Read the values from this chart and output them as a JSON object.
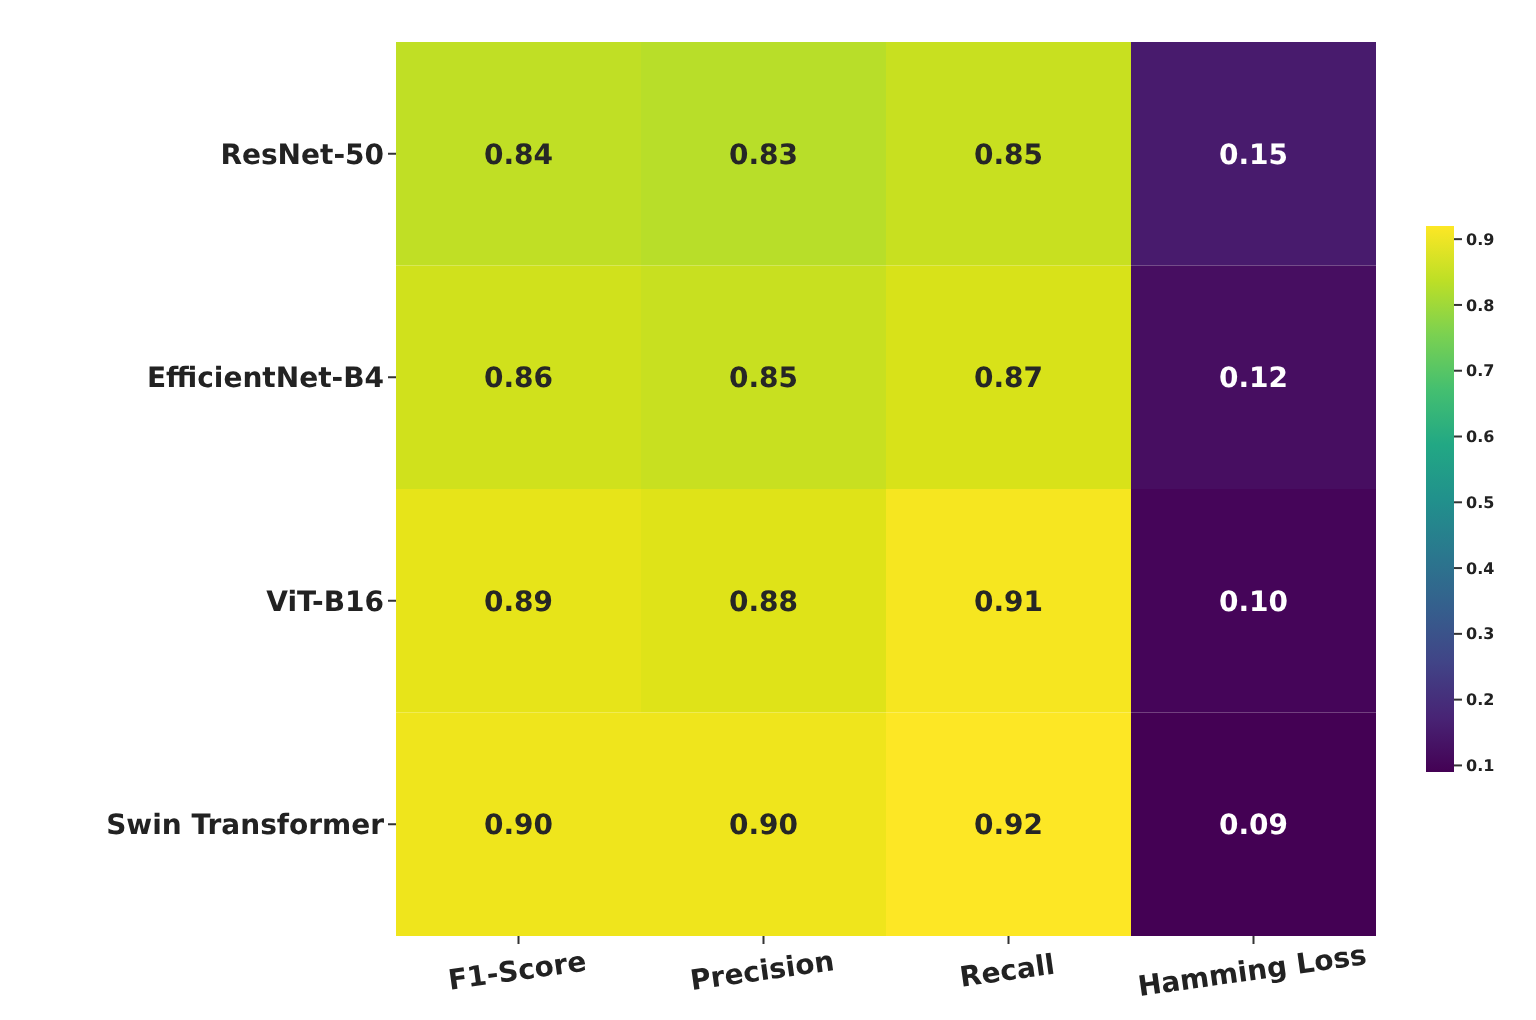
{
  "chart_data": {
    "type": "heatmap",
    "categories": [
      "F1-Score",
      "Precision",
      "Recall",
      "Hamming Loss"
    ],
    "y_categories": [
      "ResNet-50",
      "EfficientNet-B4",
      "ViT-B16",
      "Swin Transformer"
    ],
    "cells": [
      [
        0.84,
        0.83,
        0.85,
        0.15
      ],
      [
        0.86,
        0.85,
        0.87,
        0.12
      ],
      [
        0.89,
        0.88,
        0.91,
        0.1
      ],
      [
        0.9,
        0.9,
        0.92,
        0.09
      ]
    ],
    "cell_labels": [
      [
        "0.84",
        "0.83",
        "0.85",
        "0.15"
      ],
      [
        "0.86",
        "0.85",
        "0.87",
        "0.12"
      ],
      [
        "0.89",
        "0.88",
        "0.91",
        "0.10"
      ],
      [
        "0.90",
        "0.90",
        "0.92",
        "0.09"
      ]
    ],
    "clim": [
      0.09,
      0.92
    ],
    "cticks": [
      0.1,
      0.2,
      0.3,
      0.4,
      0.5,
      0.6,
      0.7,
      0.8,
      0.9
    ],
    "data_labels": true
  }
}
